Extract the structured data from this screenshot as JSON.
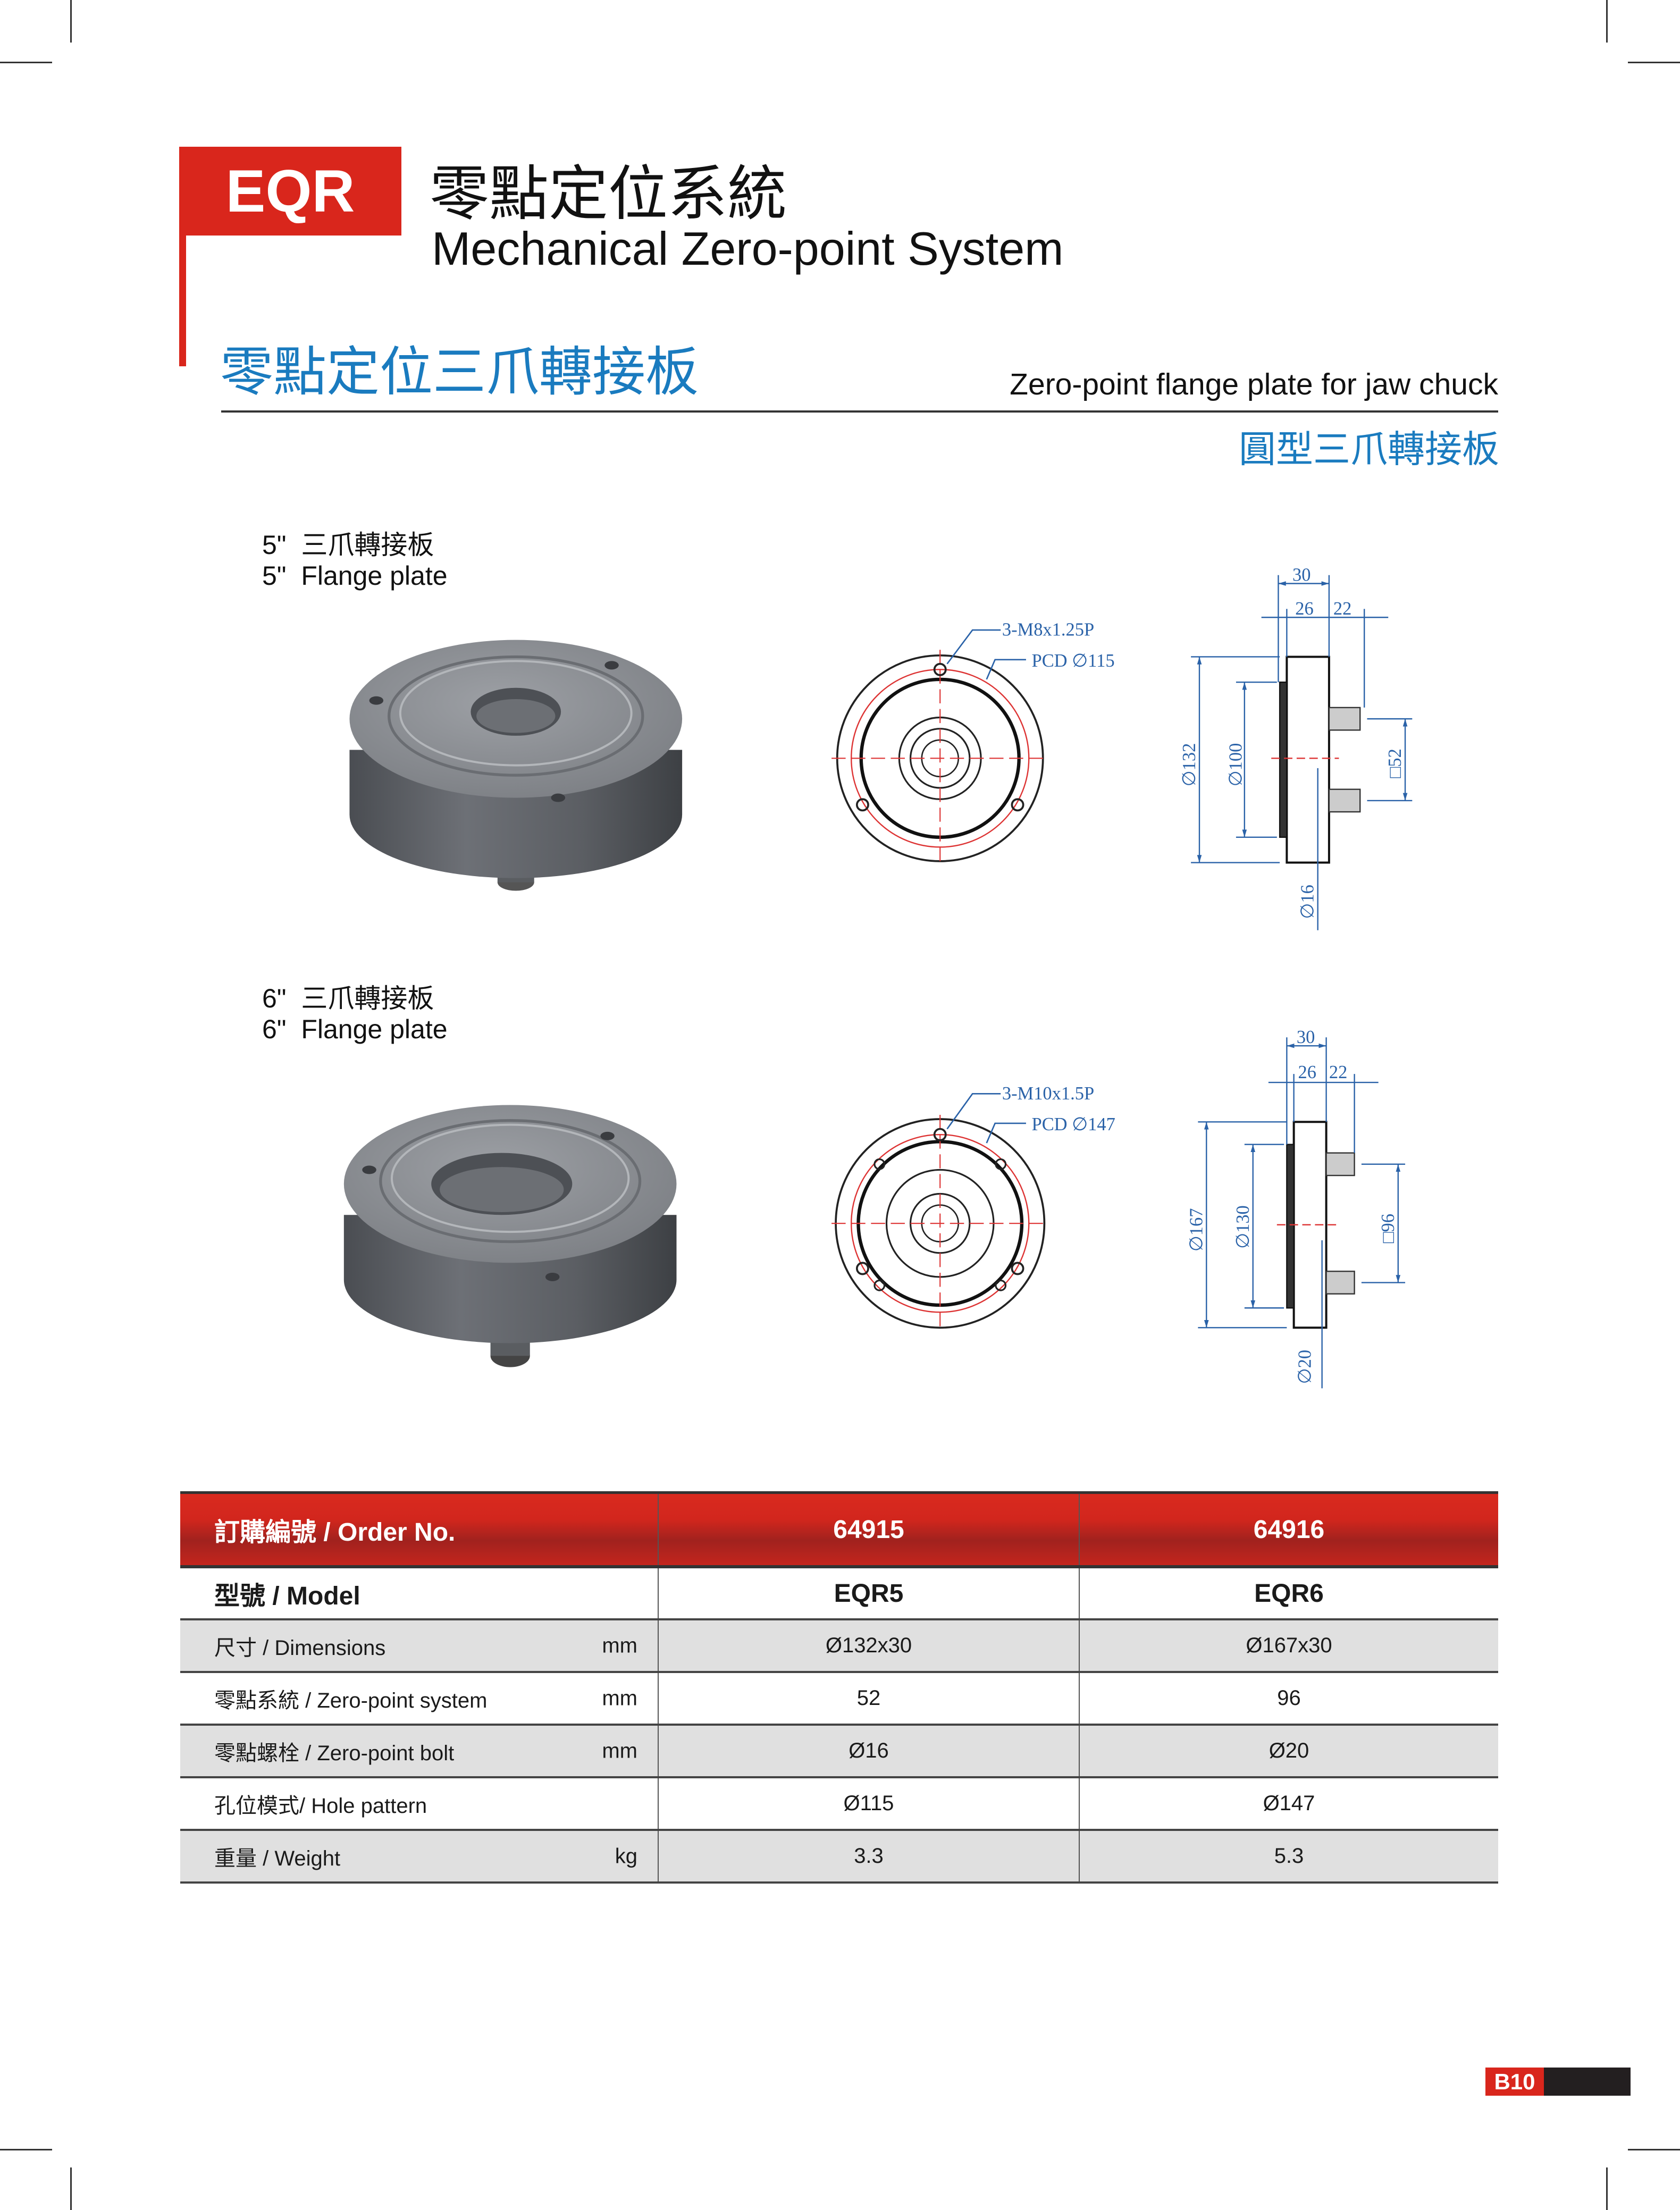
{
  "header": {
    "badge": "EQR",
    "title_cn": "零點定位系統",
    "title_en": "Mechanical Zero-point System"
  },
  "section": {
    "title_cn": "零點定位三爪轉接板",
    "title_en": "Zero-point flange plate for jaw chuck",
    "subtitle_cn": "圓型三爪轉接板"
  },
  "products": [
    {
      "caption_cn": "5\"  三爪轉接板",
      "caption_en": "5\"  Flange plate",
      "front_view": {
        "thread": "3-M8x1.25P",
        "pcd": "PCD ∅115"
      },
      "side_view": {
        "d_outer": "∅132",
        "d_inner": "∅100",
        "square": "□52",
        "bolt": "∅16",
        "total": "30",
        "body": "26",
        "bolt_len": "22"
      }
    },
    {
      "caption_cn": "6\"  三爪轉接板",
      "caption_en": "6\"  Flange plate",
      "front_view": {
        "thread": "3-M10x1.5P",
        "pcd": "PCD ∅147"
      },
      "side_view": {
        "d_outer": "∅167",
        "d_inner": "∅130",
        "square": "□96",
        "bolt": "∅20",
        "total": "30",
        "body": "26",
        "bolt_len": "22"
      }
    }
  ],
  "table": {
    "header": {
      "label": "訂購編號 / Order No.",
      "values": [
        "64915",
        "64916"
      ]
    },
    "model": {
      "label": "型號 / Model",
      "values": [
        "EQR5",
        "EQR6"
      ]
    },
    "rows": [
      {
        "label": "尺寸 / Dimensions",
        "unit": "mm",
        "values": [
          "Ø132x30",
          "Ø167x30"
        ]
      },
      {
        "label": "零點系統 / Zero-point system",
        "unit": "mm",
        "values": [
          "52",
          "96"
        ]
      },
      {
        "label": "零點螺栓 / Zero-point bolt",
        "unit": "mm",
        "values": [
          "Ø16",
          "Ø20"
        ]
      },
      {
        "label": "孔位模式/ Hole pattern",
        "unit": "",
        "values": [
          "Ø115",
          "Ø147"
        ]
      },
      {
        "label": "重量 / Weight",
        "unit": "kg",
        "values": [
          "3.3",
          "5.3"
        ]
      }
    ]
  },
  "footer": {
    "page": "B10"
  },
  "colors": {
    "brand_red": "#d9261c",
    "accent_blue": "#1a7bbf",
    "dimension_blue": "#2a62a8"
  }
}
